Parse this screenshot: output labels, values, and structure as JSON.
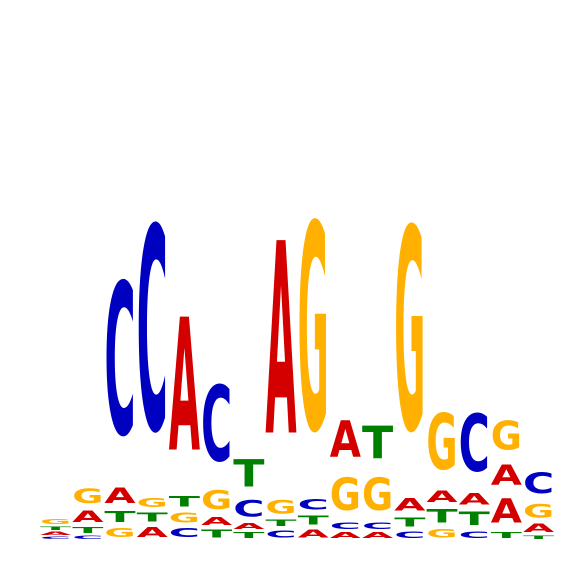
{
  "colors": {
    "A": "#d40000",
    "C": "#0000c0",
    "G": "#ffb000",
    "T": "#008000"
  },
  "motif": [
    {
      "position": 1,
      "letters": [
        {
          "base": "C",
          "weight": 0.006
        },
        {
          "base": "A",
          "weight": 0.008
        },
        {
          "base": "T",
          "weight": 0.008
        },
        {
          "base": "G",
          "weight": 0.012
        }
      ]
    },
    {
      "position": 2,
      "letters": [
        {
          "base": "C",
          "weight": 0.008
        },
        {
          "base": "T",
          "weight": 0.014
        },
        {
          "base": "A",
          "weight": 0.028
        },
        {
          "base": "G",
          "weight": 0.035
        }
      ]
    },
    {
      "position": 3,
      "letters": [
        {
          "base": "G",
          "weight": 0.022
        },
        {
          "base": "T",
          "weight": 0.027
        },
        {
          "base": "A",
          "weight": 0.038
        },
        {
          "base": "C",
          "weight": 0.375
        }
      ]
    },
    {
      "position": 4,
      "letters": [
        {
          "base": "A",
          "weight": 0.024
        },
        {
          "base": "T",
          "weight": 0.022
        },
        {
          "base": "G",
          "weight": 0.022
        },
        {
          "base": "C",
          "weight": 0.503
        }
      ]
    },
    {
      "position": 5,
      "letters": [
        {
          "base": "C",
          "weight": 0.022
        },
        {
          "base": "G",
          "weight": 0.024
        },
        {
          "base": "T",
          "weight": 0.026
        },
        {
          "base": "A",
          "weight": 0.328
        }
      ]
    },
    {
      "position": 6,
      "letters": [
        {
          "base": "T",
          "weight": 0.019
        },
        {
          "base": "A",
          "weight": 0.019
        },
        {
          "base": "G",
          "weight": 0.046
        },
        {
          "base": "C",
          "weight": 0.186
        }
      ]
    },
    {
      "position": 7,
      "letters": [
        {
          "base": "T",
          "weight": 0.014
        },
        {
          "base": "A",
          "weight": 0.014
        },
        {
          "base": "C",
          "weight": 0.04
        },
        {
          "base": "T",
          "weight": 0.068
        }
      ]
    },
    {
      "position": 8,
      "letters": [
        {
          "base": "C",
          "weight": 0.018
        },
        {
          "base": "T",
          "weight": 0.016
        },
        {
          "base": "G",
          "weight": 0.034
        },
        {
          "base": "A",
          "weight": 0.475
        }
      ]
    },
    {
      "position": 9,
      "letters": [
        {
          "base": "A",
          "weight": 0.019
        },
        {
          "base": "T",
          "weight": 0.023
        },
        {
          "base": "C",
          "weight": 0.025
        },
        {
          "base": "G",
          "weight": 0.51
        }
      ]
    },
    {
      "position": 10,
      "letters": [
        {
          "base": "A",
          "weight": 0.014
        },
        {
          "base": "C",
          "weight": 0.016
        },
        {
          "base": "G",
          "weight": 0.08
        },
        {
          "base": "A",
          "weight": 0.09
        }
      ]
    },
    {
      "position": 11,
      "letters": [
        {
          "base": "A",
          "weight": 0.014
        },
        {
          "base": "C",
          "weight": 0.016
        },
        {
          "base": "G",
          "weight": 0.08
        },
        {
          "base": "T",
          "weight": 0.08
        }
      ]
    },
    {
      "position": 12,
      "letters": [
        {
          "base": "C",
          "weight": 0.016
        },
        {
          "base": "T",
          "weight": 0.023
        },
        {
          "base": "A",
          "weight": 0.03
        },
        {
          "base": "G",
          "weight": 0.5
        }
      ]
    },
    {
      "position": 13,
      "letters": [
        {
          "base": "G",
          "weight": 0.02
        },
        {
          "base": "T",
          "weight": 0.033
        },
        {
          "base": "A",
          "weight": 0.028
        },
        {
          "base": "G",
          "weight": 0.138
        }
      ]
    },
    {
      "position": 14,
      "letters": [
        {
          "base": "C",
          "weight": 0.016
        },
        {
          "base": "T",
          "weight": 0.033
        },
        {
          "base": "A",
          "weight": 0.028
        },
        {
          "base": "C",
          "weight": 0.142
        }
      ]
    },
    {
      "position": 15,
      "letters": [
        {
          "base": "T",
          "weight": 0.015
        },
        {
          "base": "A",
          "weight": 0.06
        },
        {
          "base": "A",
          "weight": 0.05
        },
        {
          "base": "G",
          "weight": 0.07
        }
      ]
    },
    {
      "position": 16,
      "letters": [
        {
          "base": "T",
          "weight": 0.008
        },
        {
          "base": "A",
          "weight": 0.02
        },
        {
          "base": "G",
          "weight": 0.033
        },
        {
          "base": "C",
          "weight": 0.052
        }
      ]
    }
  ]
}
